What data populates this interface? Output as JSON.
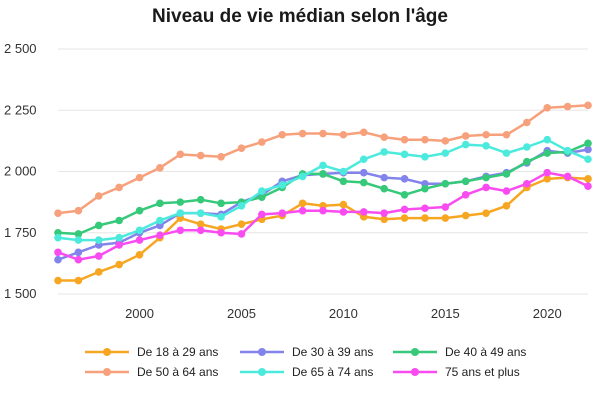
{
  "chart_data": {
    "type": "line",
    "title": "Niveau de vie médian selon l'âge",
    "xlabel": "",
    "ylabel": "",
    "xlim": [
      1996,
      2022
    ],
    "ylim": [
      1500,
      2500
    ],
    "x_ticks": [
      2000,
      2005,
      2010,
      2015,
      2020
    ],
    "y_ticks": [
      {
        "value": 1500,
        "label": "1 500"
      },
      {
        "value": 1750,
        "label": "1 750"
      },
      {
        "value": 2000,
        "label": "2 000"
      },
      {
        "value": 2250,
        "label": "2 250"
      },
      {
        "value": 2500,
        "label": "2 500"
      }
    ],
    "grid": "horizontal",
    "legend_position": "bottom",
    "x": [
      1996,
      1997,
      1998,
      1999,
      2000,
      2001,
      2002,
      2003,
      2004,
      2005,
      2006,
      2007,
      2008,
      2009,
      2010,
      2011,
      2012,
      2013,
      2014,
      2015,
      2016,
      2017,
      2018,
      2019,
      2020,
      2021,
      2022
    ],
    "series": [
      {
        "name": "De 18 à 29 ans",
        "color": "#f7a622",
        "values": [
          1555,
          1555,
          1590,
          1620,
          1660,
          1730,
          1810,
          1785,
          1765,
          1785,
          1805,
          1820,
          1870,
          1860,
          1865,
          1815,
          1805,
          1810,
          1810,
          1810,
          1820,
          1830,
          1860,
          1935,
          1970,
          1975,
          1970
        ]
      },
      {
        "name": "De 30 à 39 ans",
        "color": "#8284ec",
        "values": [
          1640,
          1670,
          1700,
          1710,
          1750,
          1780,
          1830,
          1830,
          1825,
          1875,
          1905,
          1960,
          1985,
          1990,
          1995,
          1995,
          1975,
          1970,
          1950,
          1950,
          1960,
          1980,
          1995,
          2035,
          2085,
          2075,
          2090
        ]
      },
      {
        "name": "De 40 à 49 ans",
        "color": "#36c97a",
        "values": [
          1750,
          1745,
          1780,
          1800,
          1840,
          1870,
          1875,
          1885,
          1870,
          1875,
          1895,
          1935,
          1990,
          1990,
          1960,
          1955,
          1930,
          1905,
          1930,
          1950,
          1960,
          1975,
          1990,
          2040,
          2075,
          2080,
          2115
        ]
      },
      {
        "name": "De 50 à 64 ans",
        "color": "#f7a07c",
        "values": [
          1830,
          1840,
          1900,
          1935,
          1975,
          2015,
          2070,
          2065,
          2060,
          2095,
          2120,
          2150,
          2155,
          2155,
          2150,
          2160,
          2140,
          2130,
          2130,
          2125,
          2145,
          2150,
          2150,
          2200,
          2260,
          2265,
          2270
        ]
      },
      {
        "name": "De 65 à 74 ans",
        "color": "#4ceadd",
        "values": [
          1730,
          1720,
          1720,
          1730,
          1760,
          1800,
          1830,
          1830,
          1815,
          1860,
          1920,
          1945,
          1980,
          2025,
          2000,
          2050,
          2080,
          2070,
          2060,
          2075,
          2110,
          2105,
          2075,
          2100,
          2130,
          2085,
          2050
        ]
      },
      {
        "name": "75 ans et plus",
        "color": "#f94cf0",
        "values": [
          1670,
          1640,
          1655,
          1700,
          1720,
          1740,
          1760,
          1760,
          1750,
          1745,
          1825,
          1830,
          1840,
          1840,
          1835,
          1835,
          1830,
          1845,
          1850,
          1855,
          1905,
          1935,
          1920,
          1950,
          1995,
          1980,
          1940
        ]
      }
    ]
  }
}
